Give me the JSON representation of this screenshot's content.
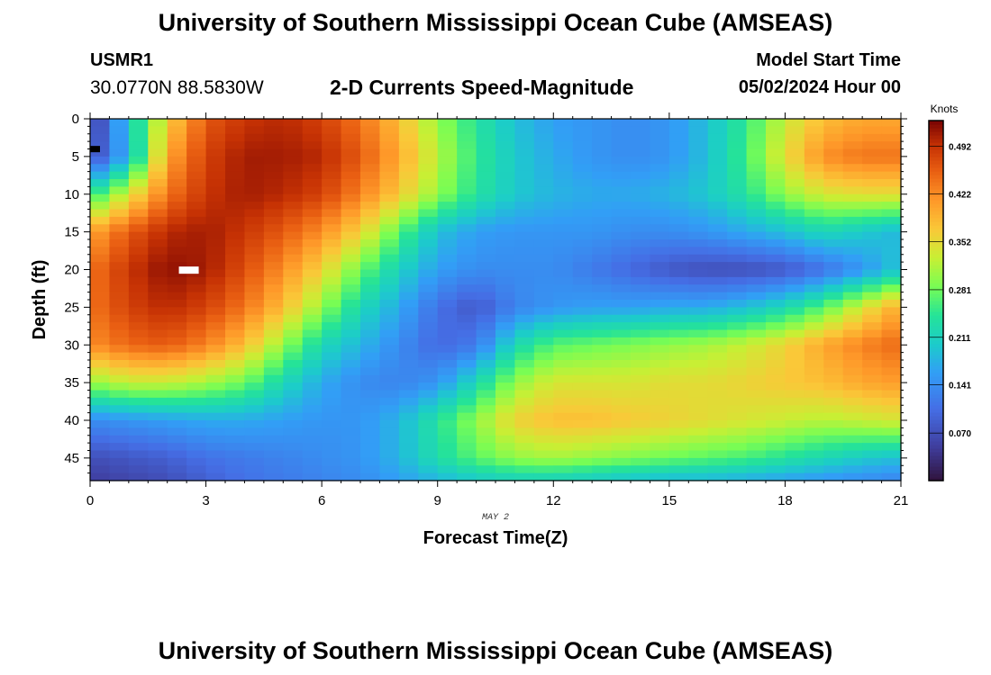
{
  "header": {
    "title_top": "University of Southern Mississippi Ocean Cube (AMSEAS)",
    "title_bottom": "University of Southern Mississippi Ocean Cube (AMSEAS)",
    "station_id": "USMR1",
    "station_coords": "30.0770N  88.5830W",
    "chart_title": "2-D Currents Speed-Magnitude",
    "model_start_label": "Model Start Time",
    "model_start_value": "05/02/2024 Hour 00"
  },
  "chart_data": {
    "type": "heatmap",
    "title": "2-D Currents Speed-Magnitude",
    "xlabel": "Forecast Time(Z)",
    "ylabel": "Depth (ft)",
    "x_date_label": "MAY 2",
    "xlim": [
      0,
      21
    ],
    "ylim": [
      48,
      0
    ],
    "x_ticks": [
      "0",
      "3",
      "6",
      "9",
      "12",
      "15",
      "18",
      "21"
    ],
    "y_ticks": [
      "0",
      "5",
      "10",
      "15",
      "20",
      "25",
      "30",
      "35",
      "40",
      "45"
    ],
    "colorbar": {
      "label": "Knots",
      "min": 0.0,
      "max": 0.53,
      "ticks": [
        "0.492",
        "0.422",
        "0.352",
        "0.281",
        "0.211",
        "0.141",
        "0.070"
      ],
      "tick_values": [
        0.492,
        0.422,
        0.352,
        0.281,
        0.211,
        0.141,
        0.07
      ]
    },
    "time_hours": [
      0,
      1,
      2,
      3,
      4,
      5,
      6,
      7,
      8,
      9,
      10,
      11,
      12,
      13,
      14,
      15,
      16,
      17,
      18,
      19,
      20,
      21
    ],
    "depths_ft": [
      0,
      5,
      10,
      15,
      20,
      25,
      30,
      35,
      40,
      45,
      48
    ],
    "speed_knots": [
      [
        0.04,
        0.2,
        0.36,
        0.46,
        0.49,
        0.5,
        0.48,
        0.44,
        0.38,
        0.3,
        0.24,
        0.19,
        0.16,
        0.15,
        0.14,
        0.15,
        0.19,
        0.25,
        0.33,
        0.38,
        0.4,
        0.4
      ],
      [
        0.06,
        0.18,
        0.4,
        0.48,
        0.51,
        0.51,
        0.5,
        0.46,
        0.4,
        0.32,
        0.25,
        0.2,
        0.17,
        0.15,
        0.14,
        0.15,
        0.19,
        0.26,
        0.35,
        0.42,
        0.44,
        0.44
      ],
      [
        0.24,
        0.34,
        0.44,
        0.49,
        0.51,
        0.5,
        0.48,
        0.43,
        0.37,
        0.3,
        0.24,
        0.2,
        0.18,
        0.17,
        0.17,
        0.18,
        0.2,
        0.24,
        0.3,
        0.34,
        0.35,
        0.35
      ],
      [
        0.4,
        0.46,
        0.5,
        0.51,
        0.49,
        0.46,
        0.42,
        0.36,
        0.27,
        0.19,
        0.16,
        0.15,
        0.15,
        0.15,
        0.14,
        0.14,
        0.15,
        0.17,
        0.19,
        0.22,
        0.2,
        0.18
      ],
      [
        0.44,
        0.49,
        0.52,
        0.51,
        0.47,
        0.42,
        0.36,
        0.28,
        0.21,
        0.16,
        0.14,
        0.14,
        0.14,
        0.12,
        0.1,
        0.08,
        0.07,
        0.07,
        0.08,
        0.11,
        0.15,
        0.2
      ],
      [
        0.44,
        0.48,
        0.5,
        0.48,
        0.44,
        0.38,
        0.3,
        0.22,
        0.17,
        0.11,
        0.08,
        0.13,
        0.15,
        0.16,
        0.16,
        0.17,
        0.17,
        0.19,
        0.22,
        0.27,
        0.34,
        0.4
      ],
      [
        0.42,
        0.45,
        0.46,
        0.43,
        0.38,
        0.3,
        0.22,
        0.18,
        0.14,
        0.1,
        0.12,
        0.22,
        0.27,
        0.28,
        0.29,
        0.3,
        0.31,
        0.33,
        0.36,
        0.4,
        0.43,
        0.45
      ],
      [
        0.3,
        0.33,
        0.33,
        0.31,
        0.28,
        0.22,
        0.17,
        0.14,
        0.13,
        0.15,
        0.22,
        0.3,
        0.34,
        0.34,
        0.34,
        0.35,
        0.35,
        0.36,
        0.37,
        0.38,
        0.4,
        0.41
      ],
      [
        0.14,
        0.15,
        0.16,
        0.17,
        0.17,
        0.16,
        0.15,
        0.15,
        0.18,
        0.24,
        0.3,
        0.36,
        0.38,
        0.38,
        0.37,
        0.36,
        0.35,
        0.34,
        0.33,
        0.32,
        0.33,
        0.34
      ],
      [
        0.07,
        0.08,
        0.09,
        0.11,
        0.12,
        0.13,
        0.14,
        0.15,
        0.18,
        0.23,
        0.27,
        0.3,
        0.31,
        0.3,
        0.29,
        0.28,
        0.27,
        0.26,
        0.24,
        0.22,
        0.2,
        0.19
      ],
      [
        0.05,
        0.06,
        0.07,
        0.09,
        0.11,
        0.12,
        0.13,
        0.14,
        0.16,
        0.18,
        0.2,
        0.21,
        0.21,
        0.2,
        0.19,
        0.18,
        0.18,
        0.17,
        0.16,
        0.15,
        0.14,
        0.13
      ]
    ]
  }
}
